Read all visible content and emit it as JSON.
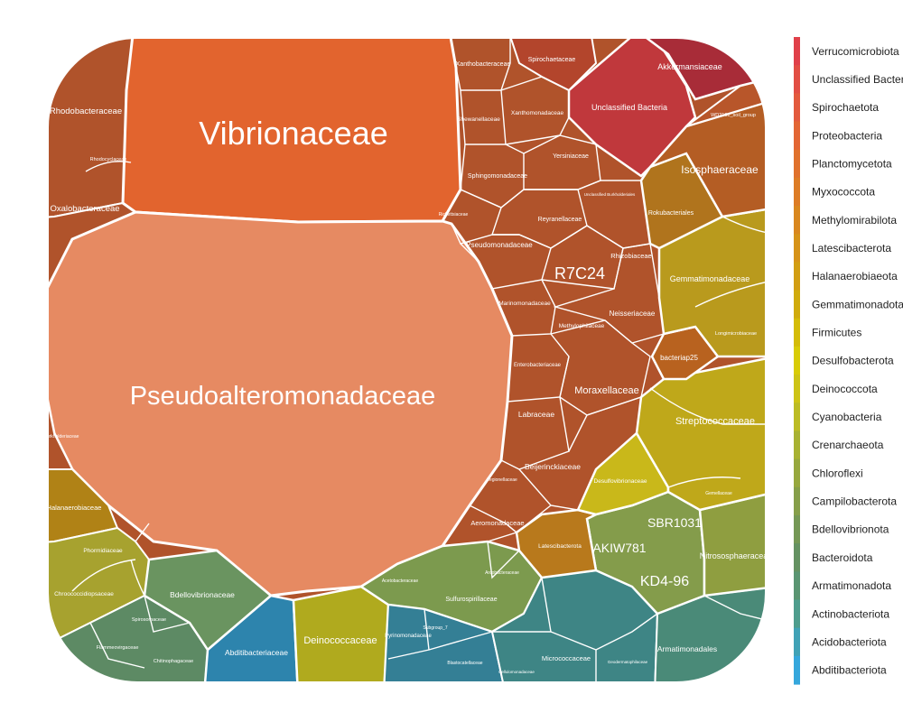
{
  "chart_data": {
    "type": "voronoi-treemap",
    "title": "",
    "legend": {
      "placement": "right",
      "entries": [
        {
          "name": "Verrucomicrobiota",
          "color": "#e0404a"
        },
        {
          "name": "Unclassified Bacteria",
          "color": "#e24e44"
        },
        {
          "name": "Spirochaetota",
          "color": "#e35a3d"
        },
        {
          "name": "Proteobacteria",
          "color": "#e36634"
        },
        {
          "name": "Planctomycetota",
          "color": "#e0712c"
        },
        {
          "name": "Myxococcota",
          "color": "#dd7c25"
        },
        {
          "name": "Methylomirabilota",
          "color": "#d9871e"
        },
        {
          "name": "Latescibacterota",
          "color": "#d69318"
        },
        {
          "name": "Halanaerobiaeota",
          "color": "#d29e12"
        },
        {
          "name": "Gemmatimonadota",
          "color": "#d0ab0c"
        },
        {
          "name": "Firmicutes",
          "color": "#d4bc08"
        },
        {
          "name": "Desulfobacterota",
          "color": "#d8cc06"
        },
        {
          "name": "Deinococcota",
          "color": "#cdc416"
        },
        {
          "name": "Cyanobacteria",
          "color": "#bcbc24"
        },
        {
          "name": "Crenarchaeota",
          "color": "#a8b232"
        },
        {
          "name": "Chloroflexi",
          "color": "#97a83e"
        },
        {
          "name": "Campilobacterota",
          "color": "#869f4a"
        },
        {
          "name": "Bdellovibrionota",
          "color": "#759856"
        },
        {
          "name": "Bacteroidota",
          "color": "#659262"
        },
        {
          "name": "Armatimonadota",
          "color": "#5a9572"
        },
        {
          "name": "Actinobacteriota",
          "color": "#4e9d8d"
        },
        {
          "name": "Acidobacteriota",
          "color": "#40a2b6"
        },
        {
          "name": "Abditibacteriota",
          "color": "#35a7dc"
        }
      ]
    },
    "cells": [
      {
        "label": "Vibrionaceae",
        "phylum": "Proteobacteria",
        "size": "xl"
      },
      {
        "label": "Pseudoalteromonadaceae",
        "phylum": "Proteobacteria",
        "size": "xl"
      },
      {
        "label": "R7C24",
        "phylum": "Proteobacteria",
        "size": "l"
      },
      {
        "label": "Rhodobacteraceae",
        "phylum": "Proteobacteria",
        "size": "s"
      },
      {
        "label": "Oxalobacteraceae",
        "phylum": "Proteobacteria",
        "size": "s"
      },
      {
        "label": "Rhodocyclaceae",
        "phylum": "Proteobacteria",
        "size": "xs"
      },
      {
        "label": "Xanthobacteraceae",
        "phylum": "Proteobacteria",
        "size": "xs"
      },
      {
        "label": "Spirochaetaceae",
        "phylum": "Spirochaetota",
        "size": "xs"
      },
      {
        "label": "Akkermansiaceae",
        "phylum": "Verrucomicrobiota",
        "size": "s"
      },
      {
        "label": "Unclassified Bacteria",
        "phylum": "Unclassified Bacteria",
        "size": "s"
      },
      {
        "label": "WD2101_soil_group",
        "phylum": "Planctomycetota",
        "size": "xs"
      },
      {
        "label": "Isosphaeraceae",
        "phylum": "Planctomycetota",
        "size": "m"
      },
      {
        "label": "Shewanellaceae",
        "phylum": "Proteobacteria",
        "size": "xs"
      },
      {
        "label": "Xanthomonadaceae",
        "phylum": "Proteobacteria",
        "size": "xs"
      },
      {
        "label": "Yersiniaceae",
        "phylum": "Proteobacteria",
        "size": "xs"
      },
      {
        "label": "Sphingomonadaceae",
        "phylum": "Proteobacteria",
        "size": "xs"
      },
      {
        "label": "Unclassified Burkholderiales",
        "phylum": "Proteobacteria",
        "size": "xs"
      },
      {
        "label": "Rickettsiaceae",
        "phylum": "Proteobacteria",
        "size": "xs"
      },
      {
        "label": "Reyranellaceae",
        "phylum": "Proteobacteria",
        "size": "xs"
      },
      {
        "label": "Rokubacteriales",
        "phylum": "Methylomirabilota",
        "size": "xs"
      },
      {
        "label": "Pseudomonadaceae",
        "phylum": "Proteobacteria",
        "size": "xs"
      },
      {
        "label": "Rhizobiaceae",
        "phylum": "Proteobacteria",
        "size": "xs"
      },
      {
        "label": "Gemmatimonadaceae",
        "phylum": "Gemmatimonadota",
        "size": "s"
      },
      {
        "label": "Marinomonadaceae",
        "phylum": "Proteobacteria",
        "size": "xs"
      },
      {
        "label": "Neisseriaceae",
        "phylum": "Proteobacteria",
        "size": "xs"
      },
      {
        "label": "Methylophilaceae",
        "phylum": "Proteobacteria",
        "size": "xs"
      },
      {
        "label": "Longimicrobiaceae",
        "phylum": "Gemmatimonadota",
        "size": "xs"
      },
      {
        "label": "bacteriap25",
        "phylum": "Myxococcota",
        "size": "xs"
      },
      {
        "label": "Enterobacteriaceae",
        "phylum": "Proteobacteria",
        "size": "xs"
      },
      {
        "label": "Moraxellaceae",
        "phylum": "Proteobacteria",
        "size": "s"
      },
      {
        "label": "Streptococcaceae",
        "phylum": "Firmicutes",
        "size": "m"
      },
      {
        "label": "Labraceae",
        "phylum": "Proteobacteria",
        "size": "xs"
      },
      {
        "label": "Beijerinckiaceae",
        "phylum": "Proteobacteria",
        "size": "xs"
      },
      {
        "label": "Legionellaceae",
        "phylum": "Proteobacteria",
        "size": "xs"
      },
      {
        "label": "Desulfovibrionaceae",
        "phylum": "Desulfobacterota",
        "size": "xs"
      },
      {
        "label": "Gemellaceae",
        "phylum": "Firmicutes",
        "size": "xs"
      },
      {
        "label": "Aeromonadaceae",
        "phylum": "Proteobacteria",
        "size": "xs"
      },
      {
        "label": "SBR1031",
        "phylum": "Chloroflexi",
        "size": "m"
      },
      {
        "label": "Latescibacterota",
        "phylum": "Latescibacterota",
        "size": "xs"
      },
      {
        "label": "AKIW781",
        "phylum": "Chloroflexi",
        "size": "m"
      },
      {
        "label": "Nitrososphaeraceae",
        "phylum": "Crenarchaeota",
        "size": "s"
      },
      {
        "label": "KD4-96",
        "phylum": "Chloroflexi",
        "size": "m"
      },
      {
        "label": "Halanaerobiaceae",
        "phylum": "Halanaerobiaeota",
        "size": "s"
      },
      {
        "label": "Phormidiaceae",
        "phylum": "Cyanobacteria",
        "size": "xs"
      },
      {
        "label": "Chroococcidiopsaceae",
        "phylum": "Cyanobacteria",
        "size": "xs"
      },
      {
        "label": "Bdellovibrionaceae",
        "phylum": "Bdellovibrionota",
        "size": "s"
      },
      {
        "label": "Sulfurospirillaceae",
        "phylum": "Campilobacterota",
        "size": "xs"
      },
      {
        "label": "Arcobacteraceae",
        "phylum": "Campilobacterota",
        "size": "xs"
      },
      {
        "label": "Acetobacteraceae",
        "phylum": "Proteobacteria",
        "size": "xs"
      },
      {
        "label": "Deinococcaceae",
        "phylum": "Deinococcota",
        "size": "s"
      },
      {
        "label": "Abditibacteriaceae",
        "phylum": "Abditibacteriota",
        "size": "s"
      },
      {
        "label": "Spirosomaceae",
        "phylum": "Bacteroidota",
        "size": "xs"
      },
      {
        "label": "Flammeovirgaceae",
        "phylum": "Bacteroidota",
        "size": "xs"
      },
      {
        "label": "Chitinophagaceae",
        "phylum": "Bacteroidota",
        "size": "xs"
      },
      {
        "label": "Pyrinomonadaceae",
        "phylum": "Acidobacteriota",
        "size": "xs"
      },
      {
        "label": "Subgroup_7",
        "phylum": "Acidobacteriota",
        "size": "xs"
      },
      {
        "label": "Blastocatellaceae",
        "phylum": "Acidobacteriota",
        "size": "xs"
      },
      {
        "label": "Micrococcaceae",
        "phylum": "Actinobacteriota",
        "size": "xs"
      },
      {
        "label": "Geodermatophilaceae",
        "phylum": "Actinobacteriota",
        "size": "xs"
      },
      {
        "label": "Cellulomonadaceae",
        "phylum": "Actinobacteriota",
        "size": "xs"
      },
      {
        "label": "Armatimonadales",
        "phylum": "Armatimonadota",
        "size": "xs"
      },
      {
        "label": "Burkholderiaceae",
        "phylum": "Proteobacteria",
        "size": "xs"
      }
    ]
  }
}
